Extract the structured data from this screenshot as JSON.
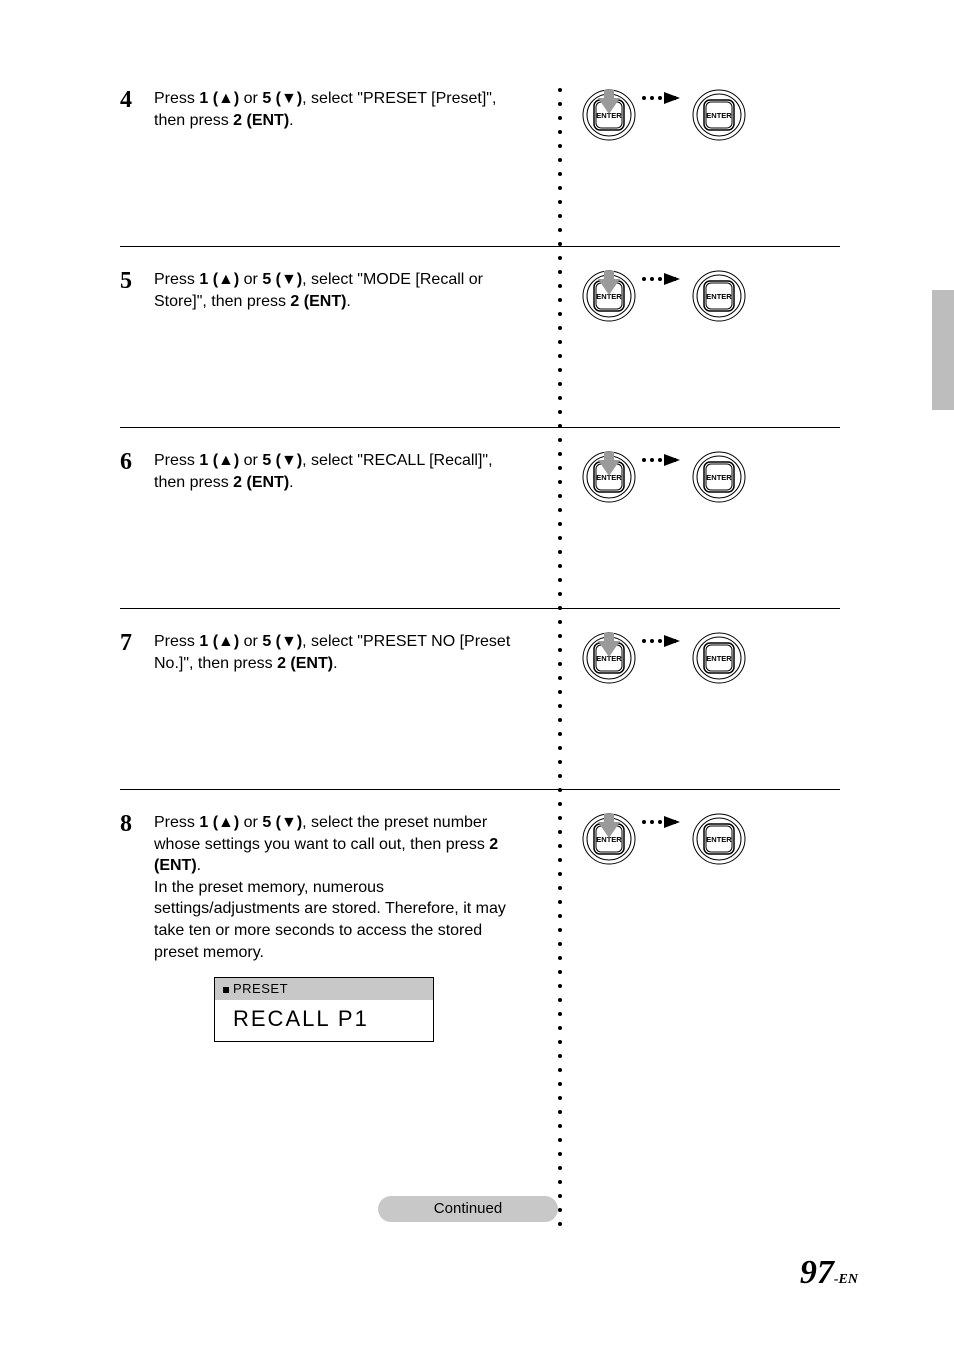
{
  "page_number": "97",
  "page_suffix": "-EN",
  "continued_label": "Continued",
  "steps": [
    {
      "num": "4",
      "text_pre": "Press ",
      "b1": "1 (▲)",
      "mid1": " or ",
      "b2": "5 (▼)",
      "mid2": ", select \"PRESET [Preset]\", then press ",
      "b3": "2 (ENT)",
      "text_post": ".",
      "note": "",
      "lcd": null
    },
    {
      "num": "5",
      "text_pre": "Press ",
      "b1": "1 (▲)",
      "mid1": " or ",
      "b2": "5 (▼)",
      "mid2": ", select \"MODE [Recall or Store]\", then press ",
      "b3": "2 (ENT)",
      "text_post": ".",
      "note": "",
      "lcd": null
    },
    {
      "num": "6",
      "text_pre": "Press ",
      "b1": "1 (▲)",
      "mid1": " or ",
      "b2": "5 (▼)",
      "mid2": ", select \"RECALL [Recall]\", then press ",
      "b3": "2 (ENT)",
      "text_post": ".",
      "note": "",
      "lcd": null
    },
    {
      "num": "7",
      "text_pre": "Press ",
      "b1": "1 (▲)",
      "mid1": " or ",
      "b2": "5 (▼)",
      "mid2": ", select \"PRESET NO [Preset No.]\", then press ",
      "b3": "2 (ENT)",
      "text_post": ".",
      "note": "",
      "lcd": null
    },
    {
      "num": "8",
      "text_pre": "Press ",
      "b1": "1 (▲)",
      "mid1": " or ",
      "b2": "5 (▼)",
      "mid2": ", select the preset number whose settings you want to call out, then press ",
      "b3": "2 (ENT)",
      "text_post": ".",
      "note": "In the preset memory, numerous settings/adjustments are stored. Therefore, it may take ten or more seconds to access the stored preset memory.",
      "lcd": {
        "header": "PRESET",
        "main": "RECALL  P1"
      }
    }
  ],
  "diagram": {
    "button_label": "ENTER",
    "arrow_color": "#9a9a9a",
    "button_fill": "#ffffff",
    "button_stroke": "#000000"
  }
}
